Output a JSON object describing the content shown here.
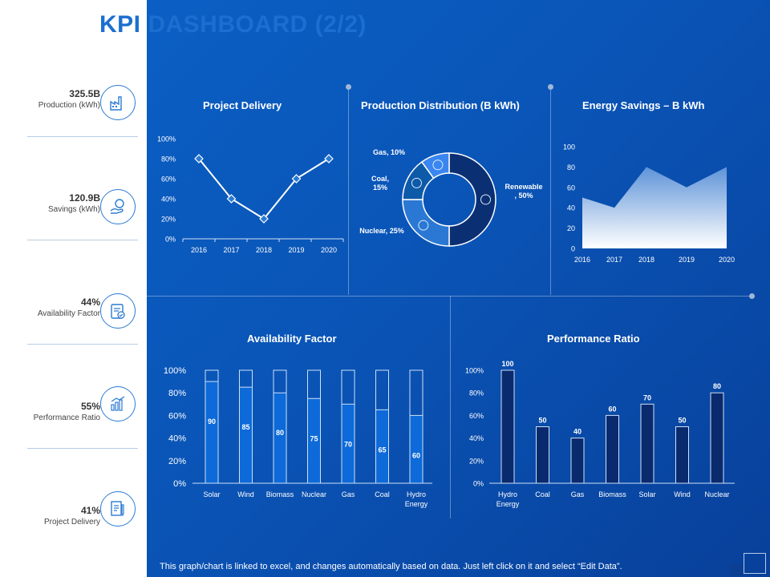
{
  "title": "KPI DASHBOARD  (2/2)",
  "footer": "This graph/chart is linked to excel, and changes automatically based on data. Just left click on it and select “Edit Data”.",
  "kpis": [
    {
      "value": "325.5B",
      "label": "Production (kWh)",
      "icon": "factory-icon"
    },
    {
      "value": "120.9B",
      "label": "Savings (kWh)",
      "icon": "money-hand-icon"
    },
    {
      "value": "44%",
      "label": "Availability Factor",
      "icon": "clipboard-check-icon"
    },
    {
      "value": "55%",
      "label": "Performance Ratio",
      "icon": "bar-chart-icon"
    },
    {
      "value": "41%",
      "label": "Project Delivery",
      "icon": "document-pen-icon"
    }
  ],
  "colors": {
    "primary": "#1c6fd0",
    "background": "#0a54b6",
    "bar_dark": "#0a2a6e"
  },
  "chart_data": [
    {
      "type": "line",
      "title": "Project Delivery",
      "categories": [
        "2016",
        "2017",
        "2018",
        "2019",
        "2020"
      ],
      "values": [
        80,
        40,
        20,
        60,
        80
      ],
      "yticks": [
        "0%",
        "20%",
        "40%",
        "60%",
        "80%",
        "100%"
      ],
      "ylim": [
        0,
        100
      ]
    },
    {
      "type": "pie",
      "title": "Production Distribution (B kWh)",
      "slices": [
        {
          "label": "Renewable , 50%",
          "value": 50,
          "color": "#0b2f73"
        },
        {
          "label": "Nuclear, 25%",
          "value": 25,
          "color": "#2a78d4"
        },
        {
          "label": "Coal, 15%",
          "value": 15,
          "color": "#0d5aa8"
        },
        {
          "label": "Gas, 10%",
          "value": 10,
          "color": "#3a86f0"
        }
      ]
    },
    {
      "type": "area",
      "title": "Energy Savings – B kWh",
      "categories": [
        "2016",
        "2017",
        "2018",
        "2019",
        "2020"
      ],
      "values": [
        50,
        40,
        80,
        60,
        80
      ],
      "yticks": [
        "0",
        "20",
        "40",
        "60",
        "80",
        "100"
      ],
      "ylim": [
        0,
        100
      ]
    },
    {
      "type": "bar",
      "stacked_to": 100,
      "title": "Availability Factor",
      "categories": [
        "Solar",
        "Wind",
        "Biomass",
        "Nuclear",
        "Gas",
        "Coal",
        "Hydro Energy"
      ],
      "values": [
        90,
        85,
        80,
        75,
        70,
        65,
        60
      ],
      "yticks": [
        "0%",
        "20%",
        "40%",
        "60%",
        "80%",
        "100%"
      ],
      "ylim": [
        0,
        100
      ]
    },
    {
      "type": "bar",
      "title": "Performance Ratio",
      "categories": [
        "Hydro Energy",
        "Coal",
        "Gas",
        "Biomass",
        "Solar",
        "Wind",
        "Nuclear"
      ],
      "values": [
        100,
        50,
        40,
        60,
        70,
        50,
        80
      ],
      "yticks": [
        "0%",
        "20%",
        "40%",
        "60%",
        "80%",
        "100%"
      ],
      "ylim": [
        0,
        100
      ]
    }
  ]
}
